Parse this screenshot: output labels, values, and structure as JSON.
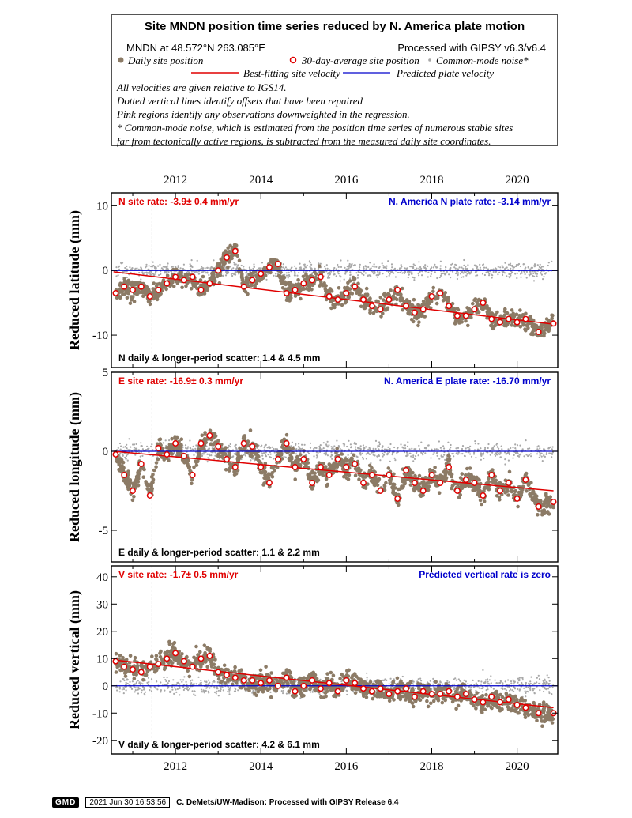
{
  "header": {
    "title": "Site MNDN position time series reduced by N. America plate motion",
    "site_location": "MNDN at 48.572°N 263.085°E",
    "processing": "Processed with GIPSY v6.3/v6.4",
    "legend": {
      "daily": "Daily site position",
      "avg30": "30-day-average site position",
      "common_mode": "Common-mode noise*",
      "best_fit": "Best-fitting site velocity",
      "predicted": "Predicted plate velocity"
    },
    "notes": [
      "All velocities are given relative to IGS14.",
      "Dotted vertical lines identify offsets that have been repaired",
      "Pink regions identify any observations downweighted in the regression.",
      "* Common-mode noise, which is estimated from the position time series of numerous stable sites",
      "far from tectonically active regions, is subtracted from the measured daily site coordinates."
    ]
  },
  "colors": {
    "daily": "#8c7b66",
    "common_mode": "#a8a8a8",
    "avg30_stroke": "#e00000",
    "best_fit": "#e00000",
    "predicted": "#0000cc",
    "site_rate_text": "#e00000",
    "plate_rate_text": "#0000cc"
  },
  "chart_data": [
    {
      "type": "scatter",
      "component": "N",
      "ylabel": "Reduced latitude (mm)",
      "xlim": [
        2010.5,
        2020.95
      ],
      "ylim": [
        -15,
        12
      ],
      "yticks": [
        -10,
        0,
        10
      ],
      "xticks": [
        2012,
        2014,
        2016,
        2018,
        2020
      ],
      "site_rate_label": "N site rate:  -3.9± 0.4 mm/yr",
      "plate_rate_label": "N. America N plate rate: -3.14 mm/yr",
      "scatter_label": "N daily & longer-period scatter:   1.4 &   4.5 mm",
      "offset_epoch": 2011.45,
      "best_fit": {
        "x": [
          2010.55,
          2020.85
        ],
        "y": [
          -0.2,
          -8.3
        ]
      },
      "predicted_line_y": 0,
      "avg30": {
        "x": [
          2010.6,
          2010.8,
          2011.0,
          2011.2,
          2011.4,
          2011.6,
          2011.8,
          2012.0,
          2012.2,
          2012.4,
          2012.6,
          2012.8,
          2013.0,
          2013.2,
          2013.4,
          2013.6,
          2013.8,
          2014.0,
          2014.2,
          2014.4,
          2014.6,
          2014.8,
          2015.0,
          2015.2,
          2015.4,
          2015.6,
          2015.8,
          2016.0,
          2016.2,
          2016.4,
          2016.6,
          2016.8,
          2017.0,
          2017.2,
          2017.4,
          2017.6,
          2017.8,
          2018.0,
          2018.2,
          2018.4,
          2018.6,
          2018.8,
          2019.0,
          2019.2,
          2019.4,
          2019.6,
          2019.8,
          2020.0,
          2020.2,
          2020.5,
          2020.85
        ],
        "y": [
          -3.5,
          -2.5,
          -3.0,
          -2.5,
          -4.0,
          -3.0,
          -2.0,
          -1.0,
          -1.5,
          -1.0,
          -3.0,
          -2.0,
          0.0,
          2.0,
          3.0,
          -2.5,
          -1.5,
          -0.5,
          0.5,
          1.0,
          -3.5,
          -3.0,
          -2.0,
          -1.5,
          -1.0,
          -4.0,
          -4.5,
          -3.5,
          -2.5,
          -4.5,
          -5.5,
          -6.0,
          -4.5,
          -3.0,
          -5.5,
          -6.5,
          -6.0,
          -4.0,
          -3.5,
          -5.5,
          -7.0,
          -7.0,
          -6.0,
          -5.0,
          -7.5,
          -8.0,
          -7.5,
          -8.0,
          -7.5,
          -9.5,
          -8.2
        ]
      }
    },
    {
      "type": "scatter",
      "component": "E",
      "ylabel": "Reduced longitude (mm)",
      "xlim": [
        2010.5,
        2020.95
      ],
      "ylim": [
        -7,
        5
      ],
      "yticks": [
        -5,
        0,
        5
      ],
      "xticks": [
        2012,
        2014,
        2016,
        2018,
        2020
      ],
      "site_rate_label": "E site rate:  -16.9± 0.3 mm/yr",
      "plate_rate_label": "N. America E plate rate: -16.70 mm/yr",
      "scatter_label": "E daily & longer-period scatter:   1.1 &   2.2 mm",
      "offset_epoch": 2011.45,
      "best_fit": {
        "x": [
          2010.55,
          2020.85
        ],
        "y": [
          0.0,
          -2.5
        ]
      },
      "predicted_line_y": 0,
      "avg30": {
        "x": [
          2010.6,
          2010.8,
          2011.0,
          2011.2,
          2011.4,
          2011.6,
          2011.8,
          2012.0,
          2012.2,
          2012.4,
          2012.6,
          2012.8,
          2013.0,
          2013.2,
          2013.4,
          2013.6,
          2013.8,
          2014.0,
          2014.2,
          2014.4,
          2014.6,
          2014.8,
          2015.0,
          2015.2,
          2015.4,
          2015.6,
          2015.8,
          2016.0,
          2016.2,
          2016.4,
          2016.6,
          2016.8,
          2017.0,
          2017.2,
          2017.4,
          2017.6,
          2017.8,
          2018.0,
          2018.2,
          2018.4,
          2018.6,
          2018.8,
          2019.0,
          2019.2,
          2019.4,
          2019.6,
          2019.8,
          2020.0,
          2020.2,
          2020.5,
          2020.85
        ],
        "y": [
          -0.2,
          -1.5,
          -2.5,
          -0.8,
          -2.8,
          0.2,
          -0.2,
          0.5,
          -0.3,
          -1.5,
          0.5,
          1.0,
          0.3,
          -0.5,
          -1.0,
          0.5,
          0.3,
          -1.0,
          -2.0,
          -0.5,
          0.5,
          -1.0,
          -0.5,
          -2.0,
          -1.0,
          -1.5,
          -0.5,
          -1.0,
          -0.8,
          -2.0,
          -1.5,
          -2.5,
          -1.5,
          -3.0,
          -1.2,
          -2.0,
          -2.5,
          -1.5,
          -2.0,
          -1.0,
          -2.5,
          -1.8,
          -2.0,
          -2.8,
          -1.5,
          -2.5,
          -2.0,
          -3.0,
          -1.8,
          -3.5,
          -3.2
        ]
      }
    },
    {
      "type": "scatter",
      "component": "V",
      "ylabel": "Reduced vertical (mm)",
      "xlim": [
        2010.5,
        2020.95
      ],
      "ylim": [
        -25,
        44
      ],
      "yticks": [
        -20,
        -10,
        0,
        10,
        20,
        30,
        40
      ],
      "xticks": [
        2012,
        2014,
        2016,
        2018,
        2020
      ],
      "site_rate_label": "V site rate:  -1.7± 0.5 mm/yr",
      "plate_rate_label": "Predicted vertical rate is zero",
      "scatter_label": "V daily & longer-period scatter:   4.2 &   6.1 mm",
      "offset_epoch": 2011.45,
      "best_fit": {
        "x": [
          2010.55,
          2020.85
        ],
        "y": [
          9.5,
          -8.0
        ]
      },
      "predicted_line_y": 0,
      "avg30": {
        "x": [
          2010.6,
          2010.8,
          2011.0,
          2011.2,
          2011.4,
          2011.6,
          2011.8,
          2012.0,
          2012.2,
          2012.4,
          2012.6,
          2012.8,
          2013.0,
          2013.2,
          2013.4,
          2013.6,
          2013.8,
          2014.0,
          2014.2,
          2014.4,
          2014.6,
          2014.8,
          2015.0,
          2015.2,
          2015.4,
          2015.6,
          2015.8,
          2016.0,
          2016.2,
          2016.4,
          2016.6,
          2016.8,
          2017.0,
          2017.2,
          2017.4,
          2017.6,
          2017.8,
          2018.0,
          2018.2,
          2018.4,
          2018.6,
          2018.8,
          2019.0,
          2019.2,
          2019.4,
          2019.6,
          2019.8,
          2020.0,
          2020.2,
          2020.5,
          2020.85
        ],
        "y": [
          9,
          7,
          6,
          5,
          7,
          8,
          10,
          12,
          9,
          7,
          10,
          11,
          5,
          4,
          3,
          2,
          2,
          1,
          2,
          0,
          3,
          -2,
          0,
          2,
          -1,
          1,
          -2,
          2,
          1,
          -1,
          -2,
          -1,
          -3,
          -2,
          -1,
          -4,
          -2,
          -3,
          -3,
          -2,
          -4,
          -3,
          -5,
          -6,
          -4,
          -6,
          -5,
          -7,
          -8,
          -10,
          -10
        ]
      }
    }
  ],
  "footer": {
    "logo": "GMD",
    "timestamp": "2021 Jun 30 16:53:56",
    "credit": "C. DeMets/UW-Madison: Processed with GIPSY Release 6.4"
  }
}
